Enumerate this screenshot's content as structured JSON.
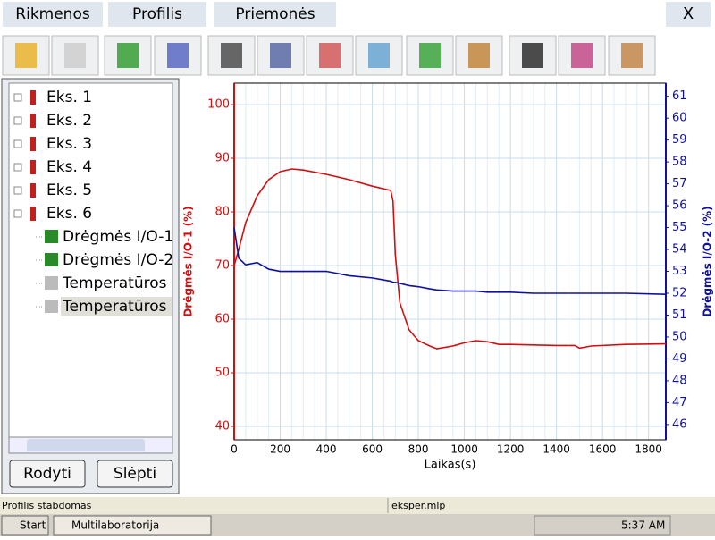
{
  "menu": {
    "items": [
      "Rikmenos",
      "Profilis",
      "Priemonės"
    ],
    "close": "X"
  },
  "tree": {
    "experiments": [
      "Eks. 1",
      "Eks. 2",
      "Eks. 3",
      "Eks. 4",
      "Eks. 5",
      "Eks. 6"
    ],
    "sensors": [
      "Drėgmės I/O-1",
      "Drėgmės I/O-2",
      "Temperatūros",
      "Temperatūros"
    ]
  },
  "buttons": {
    "show": "Rodyti",
    "hide": "Slėpti"
  },
  "status": {
    "left": "Profilis stabdomas",
    "file": "eksper.mlp"
  },
  "taskbar": {
    "start": "Start",
    "app": "Multilaboratorija",
    "clock": "5:37 AM"
  },
  "chart_data": {
    "type": "line",
    "x_label": "Laikas(s)",
    "y_label": "Drėgmės I/O-1 (%)",
    "y2_label": "Drėgmės I/O-2 (%)",
    "grid": true,
    "xlim": [
      0,
      1875
    ],
    "xticks": [
      0,
      200,
      400,
      600,
      800,
      1000,
      1200,
      1400,
      1600,
      1800
    ],
    "ylim": [
      37.5,
      104
    ],
    "yticks": [
      40,
      50,
      60,
      70,
      80,
      90,
      100
    ],
    "y2lim": [
      45.3,
      61.6
    ],
    "y2ticks": [
      46,
      47,
      48,
      49,
      50,
      51,
      52,
      53,
      54,
      55,
      56,
      57,
      58,
      59,
      60,
      61
    ],
    "x": [
      0,
      20,
      50,
      100,
      150,
      200,
      250,
      300,
      400,
      500,
      600,
      680,
      690,
      700,
      720,
      760,
      800,
      850,
      880,
      950,
      1000,
      1050,
      1100,
      1150,
      1200,
      1300,
      1400,
      1480,
      1500,
      1550,
      1700,
      1875
    ],
    "series": [
      {
        "name": "Drėgmės I/O-1",
        "color": "#d01010",
        "values": [
          70,
          73,
          78,
          83,
          86,
          87.5,
          88,
          87.8,
          87,
          86,
          84.8,
          84,
          82,
          72,
          63,
          58,
          56,
          55,
          54.5,
          55,
          55.6,
          56,
          55.8,
          55.3,
          55.3,
          55.2,
          55.1,
          55.1,
          54.6,
          55,
          55.3,
          55.4
        ]
      },
      {
        "name": "Drėgmės I/O-2",
        "color": "#1010a0",
        "axis": "y2",
        "values": [
          55,
          53.6,
          53.3,
          53.4,
          53.1,
          53,
          53,
          53,
          53,
          52.8,
          52.7,
          52.55,
          52.5,
          52.5,
          52.45,
          52.35,
          52.3,
          52.2,
          52.15,
          52.1,
          52.1,
          52.1,
          52.05,
          52.05,
          52.05,
          52,
          52,
          52,
          52,
          52,
          52,
          51.95
        ]
      }
    ]
  }
}
